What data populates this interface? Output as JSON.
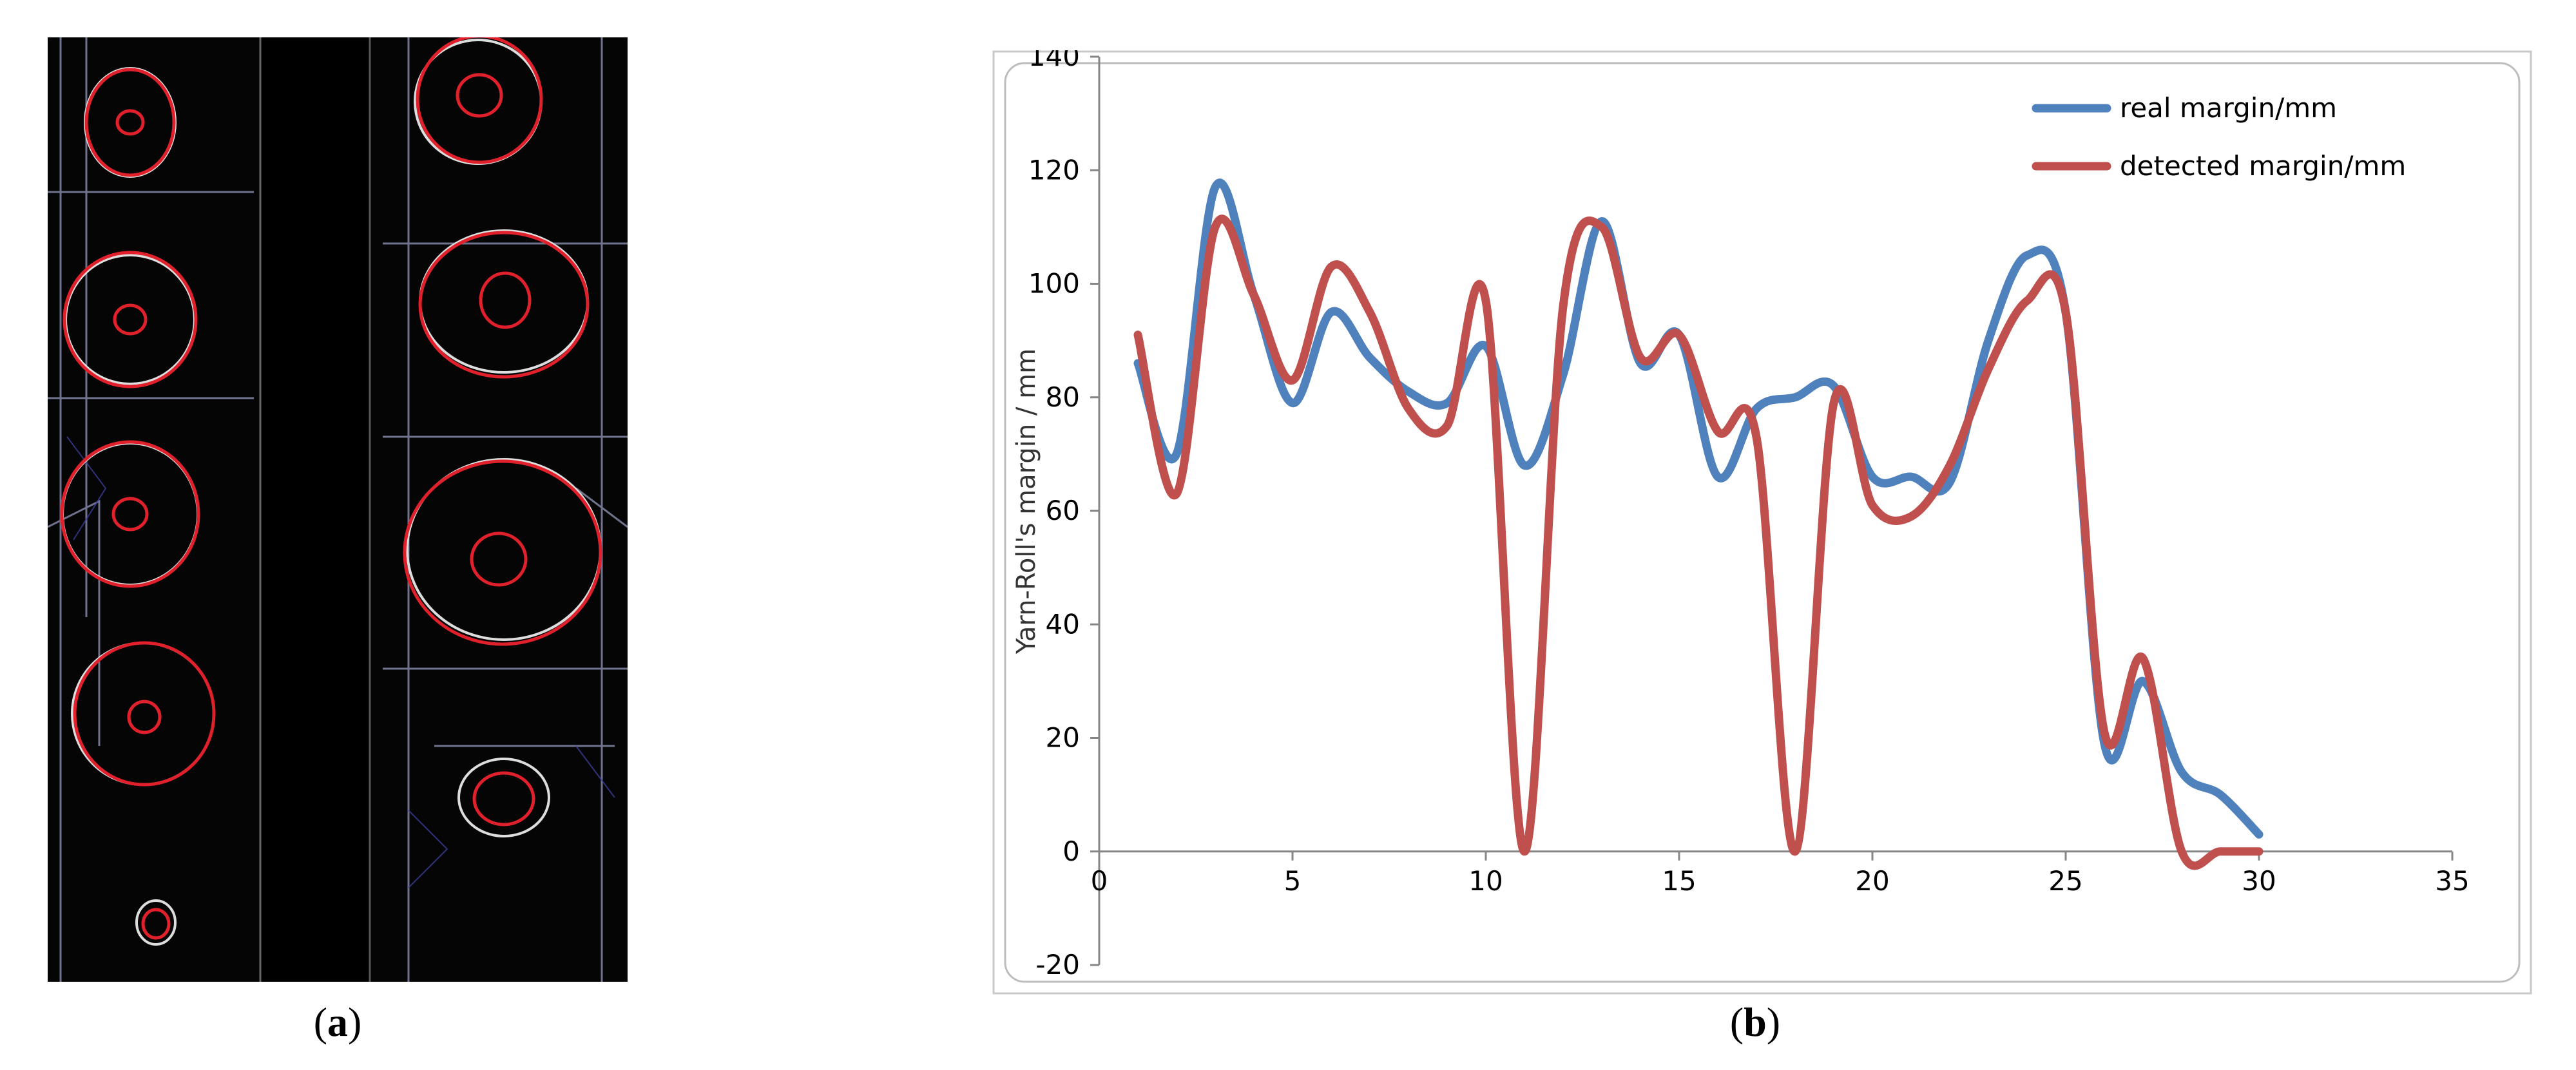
{
  "captions": {
    "a_open": "(",
    "a_letter": "a",
    "a_close": ")",
    "b_open": "(",
    "b_letter": "b",
    "b_close": ")"
  },
  "chart_data": {
    "type": "line",
    "ylabel": "Yarn-Roll's margin / mm",
    "xlabel": "",
    "title": "",
    "xlim": [
      0,
      35
    ],
    "ylim": [
      -20,
      140
    ],
    "xticks": [
      0,
      5,
      10,
      15,
      20,
      25,
      30,
      35
    ],
    "yticks": [
      -20,
      0,
      20,
      40,
      60,
      80,
      100,
      120,
      140
    ],
    "legend_position": "top-right",
    "grid": false,
    "series": [
      {
        "name": "real margin/mm",
        "color": "#4f81bd",
        "x": [
          1,
          2,
          3,
          4,
          5,
          6,
          7,
          8,
          9,
          10,
          11,
          12,
          13,
          14,
          15,
          16,
          17,
          18,
          19,
          20,
          21,
          22,
          23,
          24,
          25,
          26,
          27,
          28,
          29,
          30
        ],
        "values": [
          86,
          70,
          117,
          98,
          79,
          95,
          87,
          81,
          79,
          89,
          68,
          84,
          111,
          86,
          91,
          66,
          78,
          80,
          82,
          66,
          66,
          65,
          90,
          105,
          95,
          19,
          30,
          14,
          10,
          3
        ]
      },
      {
        "name": "detected margin/mm",
        "color": "#c0504d",
        "x": [
          1,
          2,
          3,
          4,
          5,
          6,
          7,
          8,
          9,
          10,
          11,
          12,
          13,
          14,
          15,
          16,
          17,
          18,
          19,
          20,
          21,
          22,
          23,
          24,
          25,
          26,
          27,
          28,
          29,
          30
        ],
        "values": [
          91,
          63,
          110,
          98,
          83,
          103,
          95,
          78,
          75,
          97,
          0,
          96,
          110,
          87,
          91,
          74,
          73,
          0,
          79,
          61,
          59,
          68,
          85,
          97,
          95,
          21,
          34,
          0,
          0,
          0
        ]
      }
    ]
  },
  "panel_a": {
    "ellipse_color": "#e0202a",
    "edge_color": "#ffffff"
  }
}
